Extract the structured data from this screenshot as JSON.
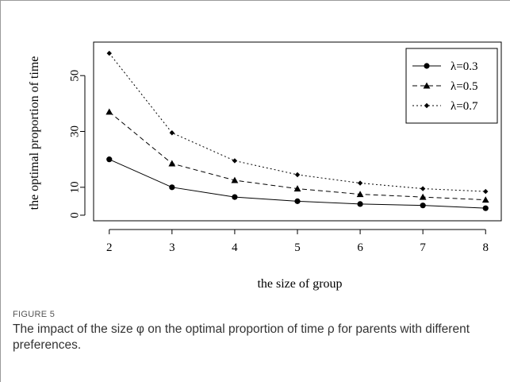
{
  "chart_data": {
    "type": "line",
    "title": "",
    "xlabel": "the size of group",
    "ylabel": "the optimal proportion of time",
    "x": [
      2,
      3,
      4,
      5,
      6,
      7,
      8
    ],
    "xlim": [
      1.75,
      8.25
    ],
    "ylim": [
      -2,
      62
    ],
    "x_ticks": [
      "2",
      "3",
      "4",
      "5",
      "6",
      "7",
      "8"
    ],
    "y_ticks": [
      "0",
      "10",
      "30",
      "50"
    ],
    "y_tick_values": [
      0,
      10,
      30,
      50
    ],
    "grid": false,
    "legend_position": "top-right",
    "series": [
      {
        "name": "λ=0.3",
        "values": [
          20,
          10,
          6.5,
          5,
          4,
          3.5,
          2.5
        ],
        "marker": "circle",
        "line": "solid"
      },
      {
        "name": "λ=0.5",
        "values": [
          37,
          18.5,
          12.5,
          9.5,
          7.5,
          6.5,
          5.5
        ],
        "marker": "triangle",
        "line": "dashed"
      },
      {
        "name": "λ=0.7",
        "values": [
          58,
          29.5,
          19.5,
          14.5,
          11.5,
          9.5,
          8.5
        ],
        "marker": "diamond",
        "line": "dotted"
      }
    ]
  },
  "caption": {
    "label": "FIGURE 5",
    "text": "The impact of the size φ on the optimal proportion of time ρ for parents with different preferences."
  }
}
